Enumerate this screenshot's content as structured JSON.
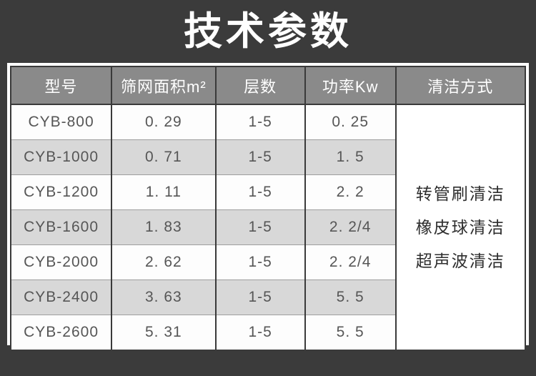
{
  "title": "技术参数",
  "colors": {
    "page_bg": "#3b3b3b",
    "table_frame_bg": "#ffffff",
    "header_bg": "#8a8a8a",
    "header_text": "#ffffff",
    "stripe_bg": "#d8d8d8",
    "body_text": "#565656",
    "grid_dark": "#3a3a3a",
    "grid_light": "#9e9e9e"
  },
  "table": {
    "headers": {
      "model": "型号",
      "area": "筛网面积m²",
      "layers": "层数",
      "power": "功率Kw",
      "cleaning": "清洁方式"
    },
    "rows": [
      {
        "model": "CYB-800",
        "area": "0. 29",
        "layers": "1-5",
        "power": "0. 25"
      },
      {
        "model": "CYB-1000",
        "area": "0. 71",
        "layers": "1-5",
        "power": "1. 5"
      },
      {
        "model": "CYB-1200",
        "area": "1. 11",
        "layers": "1-5",
        "power": "2. 2"
      },
      {
        "model": "CYB-1600",
        "area": "1. 83",
        "layers": "1-5",
        "power": "2. 2/4"
      },
      {
        "model": "CYB-2000",
        "area": "2. 62",
        "layers": "1-5",
        "power": "2. 2/4"
      },
      {
        "model": "CYB-2400",
        "area": "3. 63",
        "layers": "1-5",
        "power": "5. 5"
      },
      {
        "model": "CYB-2600",
        "area": "5. 31",
        "layers": "1-5",
        "power": "5. 5"
      }
    ],
    "cleaning_methods": [
      "转管刷清洁",
      "橡皮球清洁",
      "超声波清洁"
    ]
  }
}
